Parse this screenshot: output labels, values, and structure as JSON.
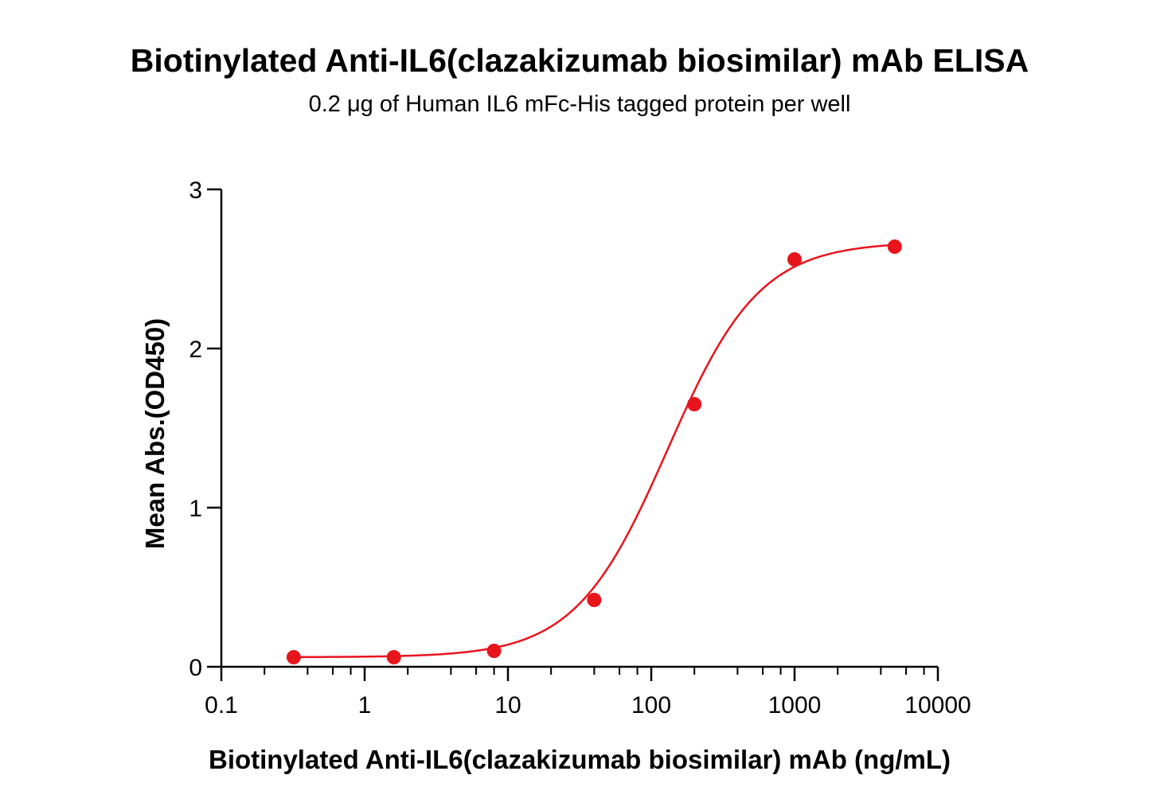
{
  "chart_data": {
    "type": "scatter",
    "title": "Biotinylated Anti-IL6(clazakizumab biosimilar) mAb ELISA",
    "subtitle": "0.2 μg of Human IL6 mFc-His tagged protein per well",
    "xlabel": "Biotinylated Anti-IL6(clazakizumab biosimilar) mAb (ng/mL)",
    "ylabel": "Mean Abs.(OD450)",
    "x_scale": "log",
    "xlim": [
      0.1,
      10000
    ],
    "ylim": [
      0,
      3
    ],
    "x_ticks": [
      0.1,
      1,
      10,
      100,
      1000,
      10000
    ],
    "x_tick_labels": [
      "0.1",
      "1",
      "10",
      "100",
      "1000",
      "10000"
    ],
    "y_ticks": [
      0,
      1,
      2,
      3
    ],
    "y_tick_labels": [
      "0",
      "1",
      "2",
      "3"
    ],
    "grid": false,
    "series": [
      {
        "color": "#e8141c",
        "x": [
          0.32,
          1.6,
          8,
          40,
          200,
          1000,
          5000
        ],
        "y": [
          0.06,
          0.06,
          0.1,
          0.42,
          1.65,
          2.56,
          2.64
        ],
        "fit": {
          "model": "4PL",
          "bottom": 0.06,
          "top": 2.67,
          "ec50": 130,
          "hill": 1.35
        }
      }
    ]
  }
}
